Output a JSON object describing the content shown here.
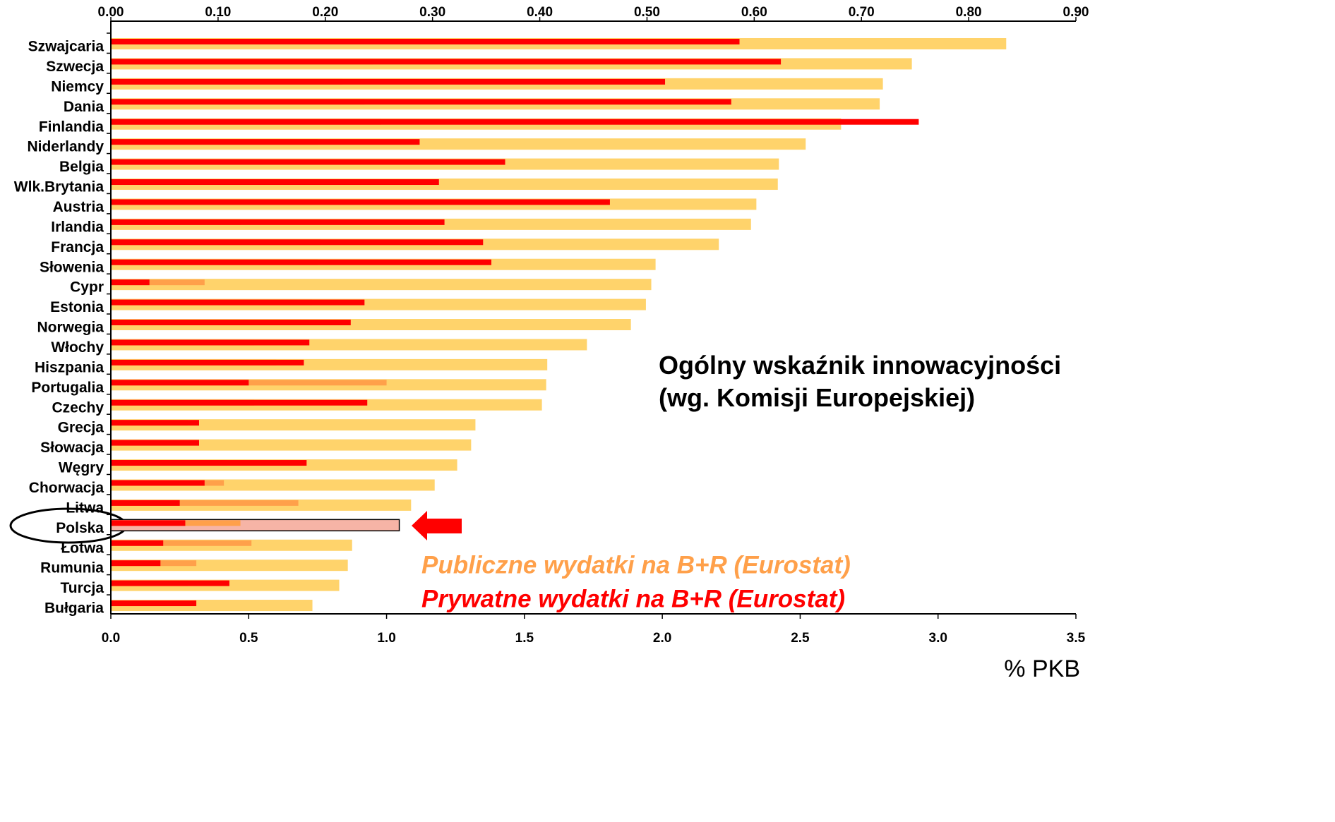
{
  "chart_data": {
    "type": "bar",
    "orientation": "horizontal",
    "x_label": "% PKB",
    "categories": [
      "Szwajcaria",
      "Szwecja",
      "Niemcy",
      "Dania",
      "Finlandia",
      "Niderlandy",
      "Belgia",
      "Wlk.Brytania",
      "Austria",
      "Irlandia",
      "Francja",
      "Słowenia",
      "Cypr",
      "Estonia",
      "Norwegia",
      "Włochy",
      "Hiszpania",
      "Portugalia",
      "Czechy",
      "Grecja",
      "Słowacja",
      "Węgry",
      "Chorwacja",
      "Litwa",
      "Polska",
      "Łotwa",
      "Rumunia",
      "Turcja",
      "Bułgaria"
    ],
    "highlighted_category": "Polska",
    "series": [
      {
        "name": "Ogólny wskaźnik innowacyjności (wg. Komisji Europejskiej)",
        "color": "#ffd36b",
        "highlight_color": "#f6b4a6",
        "axis": "x2",
        "values": [
          0.835,
          0.747,
          0.72,
          0.717,
          0.681,
          0.648,
          0.623,
          0.622,
          0.602,
          0.597,
          0.567,
          0.508,
          0.504,
          0.499,
          0.485,
          0.444,
          0.407,
          0.406,
          0.402,
          0.34,
          0.336,
          0.323,
          0.302,
          0.28,
          0.269,
          0.225,
          0.221,
          0.213,
          0.188
        ]
      },
      {
        "name": "Publiczne wydatki na B+R (Eurostat)",
        "color": "#ffa04a",
        "axis": "x",
        "values": [
          0.73,
          0.95,
          0.84,
          0.92,
          0.98,
          0.75,
          0.55,
          0.56,
          0.73,
          0.47,
          0.76,
          0.75,
          0.34,
          0.73,
          0.69,
          0.52,
          0.6,
          1.0,
          0.52,
          0.28,
          0.32,
          0.42,
          0.41,
          0.68,
          0.47,
          0.51,
          0.31,
          0.28,
          0.18
        ]
      },
      {
        "name": "Prywatne wydatki na B+R (Eurostat)",
        "color": "#ff0000",
        "axis": "x",
        "values": [
          2.28,
          2.43,
          2.01,
          2.25,
          2.93,
          1.12,
          1.43,
          1.19,
          1.81,
          1.21,
          1.35,
          1.38,
          0.14,
          0.92,
          0.87,
          0.72,
          0.7,
          0.5,
          0.93,
          0.32,
          0.32,
          0.71,
          0.34,
          0.25,
          0.27,
          0.19,
          0.18,
          0.43,
          0.31
        ]
      }
    ],
    "xlim": [
      0,
      3.5
    ],
    "xticks": [
      {
        "value": 0,
        "label": "0.0"
      },
      {
        "value": 0.5,
        "label": "0.5"
      },
      {
        "value": 1,
        "label": "1.0"
      },
      {
        "value": 1.5,
        "label": "1.5"
      },
      {
        "value": 2,
        "label": "2.0"
      },
      {
        "value": 2.5,
        "label": "2.5"
      },
      {
        "value": 3,
        "label": "3.0"
      },
      {
        "value": 3.5,
        "label": "3.5"
      }
    ],
    "x2lim": [
      0,
      0.9
    ],
    "x2ticks": [
      {
        "value": 0,
        "label": "0.00"
      },
      {
        "value": 0.1,
        "label": "0.10"
      },
      {
        "value": 0.2,
        "label": "0.20"
      },
      {
        "value": 0.3,
        "label": "0.30"
      },
      {
        "value": 0.4,
        "label": "0.40"
      },
      {
        "value": 0.5,
        "label": "0.50"
      },
      {
        "value": 0.6,
        "label": "0.60"
      },
      {
        "value": 0.7,
        "label": "0.70"
      },
      {
        "value": 0.8,
        "label": "0.80"
      },
      {
        "value": 0.9,
        "label": "0.90"
      }
    ]
  }
}
